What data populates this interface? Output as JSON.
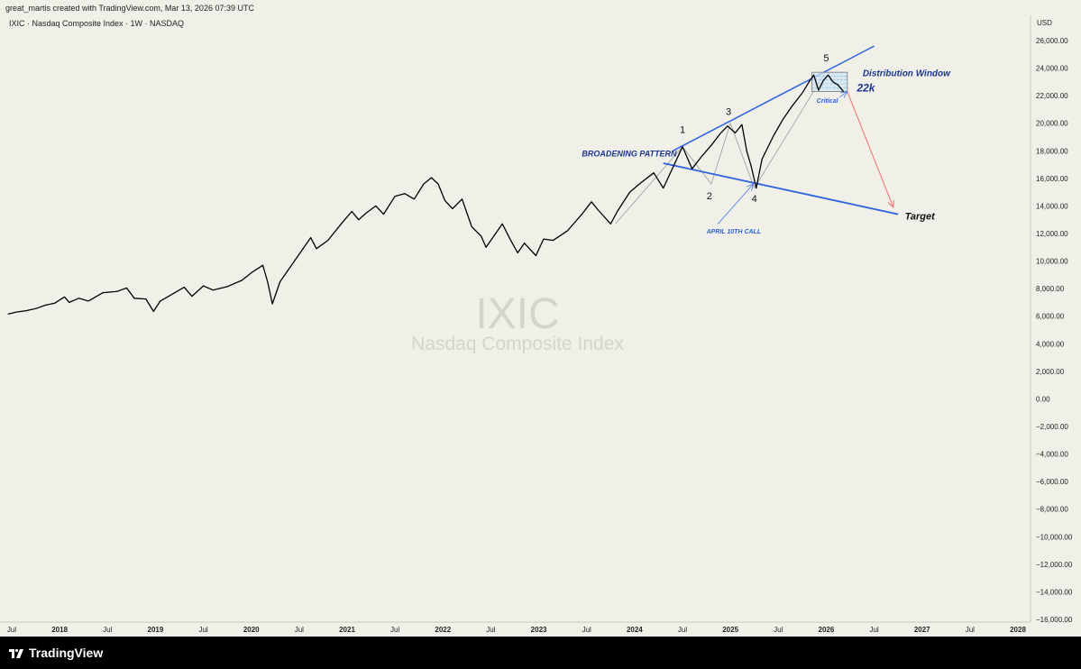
{
  "header": {
    "credit": "great_martis created with TradingView.com, Mar 13, 2026 07:39 UTC",
    "legend": "IXIC · Nasdaq Composite Index · 1W · NASDAQ"
  },
  "footer": {
    "brand": "TradingView"
  },
  "chart_data": {
    "type": "line",
    "currency": "USD",
    "watermark_symbol": "IXIC",
    "watermark_name": "Nasdaq Composite Index",
    "ylim": [
      -16000,
      26000
    ],
    "xlim": [
      2017.5,
      2028.1
    ],
    "y_ticks": [
      {
        "v": 26000,
        "label": "26,000.00"
      },
      {
        "v": 24000,
        "label": "24,000.00"
      },
      {
        "v": 22000,
        "label": "22,000.00"
      },
      {
        "v": 20000,
        "label": "20,000.00"
      },
      {
        "v": 18000,
        "label": "18,000.00"
      },
      {
        "v": 16000,
        "label": "16,000.00"
      },
      {
        "v": 14000,
        "label": "14,000.00"
      },
      {
        "v": 12000,
        "label": "12,000.00"
      },
      {
        "v": 10000,
        "label": "10,000.00"
      },
      {
        "v": 8000,
        "label": "8,000.00"
      },
      {
        "v": 6000,
        "label": "6,000.00"
      },
      {
        "v": 4000,
        "label": "4,000.00"
      },
      {
        "v": 2000,
        "label": "2,000.00"
      },
      {
        "v": 0,
        "label": "0.00"
      },
      {
        "v": -2000,
        "label": "−2,000.00"
      },
      {
        "v": -4000,
        "label": "−4,000.00"
      },
      {
        "v": -6000,
        "label": "−6,000.00"
      },
      {
        "v": -8000,
        "label": "−8,000.00"
      },
      {
        "v": -10000,
        "label": "−10,000.00"
      },
      {
        "v": -12000,
        "label": "−12,000.00"
      },
      {
        "v": -14000,
        "label": "−14,000.00"
      },
      {
        "v": -16000,
        "label": "−16,000.00"
      }
    ],
    "x_ticks": [
      {
        "t": 2017.5,
        "label": "Jul",
        "year": false
      },
      {
        "t": 2018.0,
        "label": "2018",
        "year": true
      },
      {
        "t": 2018.5,
        "label": "Jul",
        "year": false
      },
      {
        "t": 2019.0,
        "label": "2019",
        "year": true
      },
      {
        "t": 2019.5,
        "label": "Jul",
        "year": false
      },
      {
        "t": 2020.0,
        "label": "2020",
        "year": true
      },
      {
        "t": 2020.5,
        "label": "Jul",
        "year": false
      },
      {
        "t": 2021.0,
        "label": "2021",
        "year": true
      },
      {
        "t": 2021.5,
        "label": "Jul",
        "year": false
      },
      {
        "t": 2022.0,
        "label": "2022",
        "year": true
      },
      {
        "t": 2022.5,
        "label": "Jul",
        "year": false
      },
      {
        "t": 2023.0,
        "label": "2023",
        "year": true
      },
      {
        "t": 2023.5,
        "label": "Jul",
        "year": false
      },
      {
        "t": 2024.0,
        "label": "2024",
        "year": true
      },
      {
        "t": 2024.5,
        "label": "Jul",
        "year": false
      },
      {
        "t": 2025.0,
        "label": "2025",
        "year": true
      },
      {
        "t": 2025.5,
        "label": "Jul",
        "year": false
      },
      {
        "t": 2026.0,
        "label": "2026",
        "year": true
      },
      {
        "t": 2026.5,
        "label": "Jul",
        "year": false
      },
      {
        "t": 2027.0,
        "label": "2027",
        "year": true
      },
      {
        "t": 2027.5,
        "label": "Jul",
        "year": false
      },
      {
        "t": 2028.0,
        "label": "2028",
        "year": true
      }
    ],
    "series": [
      {
        "points": [
          [
            2017.46,
            6150
          ],
          [
            2017.55,
            6300
          ],
          [
            2017.65,
            6400
          ],
          [
            2017.75,
            6550
          ],
          [
            2017.85,
            6800
          ],
          [
            2017.95,
            6950
          ],
          [
            2018.05,
            7400
          ],
          [
            2018.1,
            7000
          ],
          [
            2018.2,
            7300
          ],
          [
            2018.3,
            7100
          ],
          [
            2018.45,
            7700
          ],
          [
            2018.6,
            7800
          ],
          [
            2018.7,
            8050
          ],
          [
            2018.78,
            7300
          ],
          [
            2018.9,
            7250
          ],
          [
            2018.98,
            6350
          ],
          [
            2019.05,
            7100
          ],
          [
            2019.15,
            7500
          ],
          [
            2019.3,
            8100
          ],
          [
            2019.38,
            7450
          ],
          [
            2019.5,
            8200
          ],
          [
            2019.6,
            7900
          ],
          [
            2019.75,
            8150
          ],
          [
            2019.9,
            8600
          ],
          [
            2020.0,
            9150
          ],
          [
            2020.12,
            9700
          ],
          [
            2020.17,
            8500
          ],
          [
            2020.22,
            6900
          ],
          [
            2020.3,
            8500
          ],
          [
            2020.4,
            9500
          ],
          [
            2020.5,
            10500
          ],
          [
            2020.62,
            11700
          ],
          [
            2020.68,
            10900
          ],
          [
            2020.8,
            11500
          ],
          [
            2020.95,
            12800
          ],
          [
            2021.05,
            13600
          ],
          [
            2021.12,
            13000
          ],
          [
            2021.2,
            13500
          ],
          [
            2021.3,
            14000
          ],
          [
            2021.38,
            13400
          ],
          [
            2021.5,
            14700
          ],
          [
            2021.6,
            14900
          ],
          [
            2021.7,
            14500
          ],
          [
            2021.8,
            15600
          ],
          [
            2021.88,
            16050
          ],
          [
            2021.95,
            15600
          ],
          [
            2022.02,
            14400
          ],
          [
            2022.1,
            13800
          ],
          [
            2022.2,
            14500
          ],
          [
            2022.3,
            12500
          ],
          [
            2022.4,
            11800
          ],
          [
            2022.45,
            11000
          ],
          [
            2022.55,
            12000
          ],
          [
            2022.62,
            12700
          ],
          [
            2022.7,
            11600
          ],
          [
            2022.78,
            10600
          ],
          [
            2022.85,
            11300
          ],
          [
            2022.97,
            10400
          ],
          [
            2023.05,
            11600
          ],
          [
            2023.15,
            11500
          ],
          [
            2023.3,
            12200
          ],
          [
            2023.45,
            13400
          ],
          [
            2023.55,
            14300
          ],
          [
            2023.62,
            13700
          ],
          [
            2023.75,
            12700
          ],
          [
            2023.82,
            13600
          ],
          [
            2023.95,
            15000
          ],
          [
            2024.05,
            15600
          ],
          [
            2024.2,
            16400
          ],
          [
            2024.3,
            15300
          ],
          [
            2024.4,
            16800
          ],
          [
            2024.5,
            18300
          ],
          [
            2024.55,
            17500
          ],
          [
            2024.6,
            16700
          ],
          [
            2024.7,
            17600
          ],
          [
            2024.8,
            18400
          ],
          [
            2024.9,
            19300
          ],
          [
            2024.97,
            19800
          ],
          [
            2025.05,
            19300
          ],
          [
            2025.12,
            19900
          ],
          [
            2025.17,
            18000
          ],
          [
            2025.22,
            16800
          ],
          [
            2025.27,
            15300
          ],
          [
            2025.33,
            17400
          ],
          [
            2025.45,
            19100
          ],
          [
            2025.55,
            20300
          ],
          [
            2025.65,
            21300
          ],
          [
            2025.75,
            22200
          ],
          [
            2025.82,
            23000
          ],
          [
            2025.87,
            23500
          ],
          [
            2025.92,
            22400
          ],
          [
            2025.97,
            23100
          ],
          [
            2026.02,
            23500
          ],
          [
            2026.07,
            23000
          ],
          [
            2026.12,
            22800
          ],
          [
            2026.18,
            22300
          ]
        ]
      }
    ],
    "annotations": {
      "waves": [
        {
          "label": "1",
          "t": 2024.5,
          "v": 19300
        },
        {
          "label": "2",
          "t": 2024.78,
          "v": 14500
        },
        {
          "label": "3",
          "t": 2024.98,
          "v": 20600
        },
        {
          "label": "4",
          "t": 2025.25,
          "v": 14300
        },
        {
          "label": "5",
          "t": 2026.0,
          "v": 24500
        }
      ],
      "upper_line": [
        [
          2024.4,
          18000
        ],
        [
          2026.5,
          25600
        ]
      ],
      "lower_line": [
        [
          2024.3,
          17100
        ],
        [
          2026.75,
          13400
        ]
      ],
      "wave_path": [
        [
          2023.8,
          12700
        ],
        [
          2024.5,
          18300
        ],
        [
          2024.8,
          15600
        ],
        [
          2025.0,
          20000
        ],
        [
          2025.25,
          15300
        ],
        [
          2026.0,
          23800
        ]
      ],
      "distribution_box": {
        "t1": 2025.85,
        "t2": 2026.22,
        "v1": 22300,
        "v2": 23700
      },
      "target_arrow": [
        [
          2026.22,
          22300
        ],
        [
          2026.7,
          13900
        ]
      ],
      "april_arrow": [
        [
          2024.87,
          12700
        ],
        [
          2025.24,
          15600
        ]
      ],
      "critical_arrow": [
        [
          2026.14,
          21900
        ],
        [
          2026.22,
          22300
        ]
      ],
      "texts": {
        "broadening": "BROADENING PATTERN",
        "distribution": "Distribution Window",
        "k22": "22k",
        "critical": "Critical",
        "april": "APRIL 10TH CALL",
        "target": "Target"
      }
    },
    "colors": {
      "line": "#000000",
      "trend": "#2c62de",
      "text_blue": "#1a3591",
      "arrow_red": "#f08080",
      "wave_grey": "#9a9a9a"
    }
  }
}
